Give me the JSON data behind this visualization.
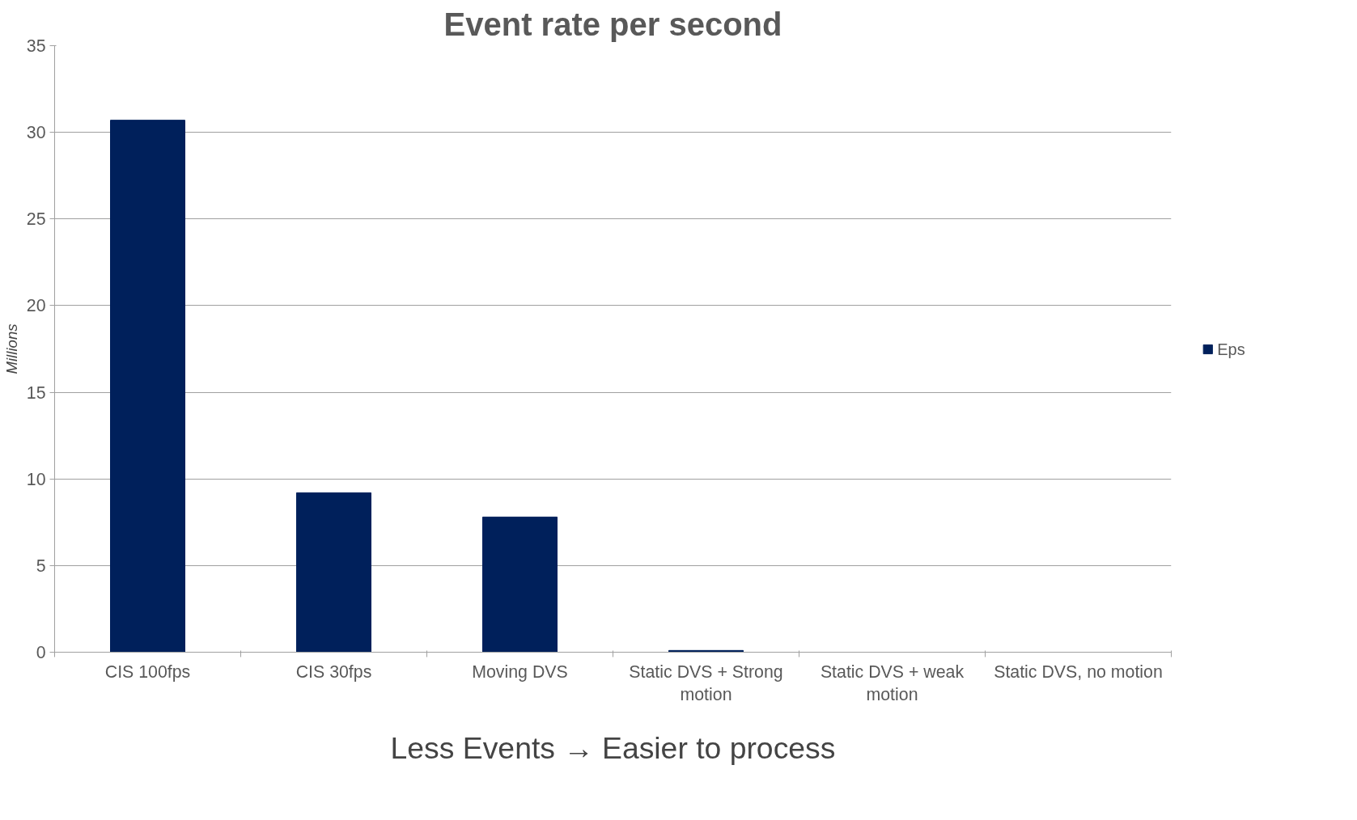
{
  "chart_data": {
    "type": "bar",
    "title": "Event rate per second",
    "ylabel": "Millions",
    "xlabel": "Less Events → Easier to process",
    "categories": [
      "CIS 100fps",
      "CIS 30fps",
      "Moving DVS",
      "Static DVS + Strong motion",
      "Static DVS + weak motion",
      "Static DVS, no motion"
    ],
    "series": [
      {
        "name": "Eps",
        "color": "#00205b",
        "values": [
          30.7,
          9.2,
          7.8,
          0.1,
          0,
          0
        ]
      }
    ],
    "ylim": [
      0,
      35
    ],
    "yticks": [
      0,
      5,
      10,
      15,
      20,
      25,
      30,
      35
    ],
    "grid": "y",
    "legend": "right"
  }
}
